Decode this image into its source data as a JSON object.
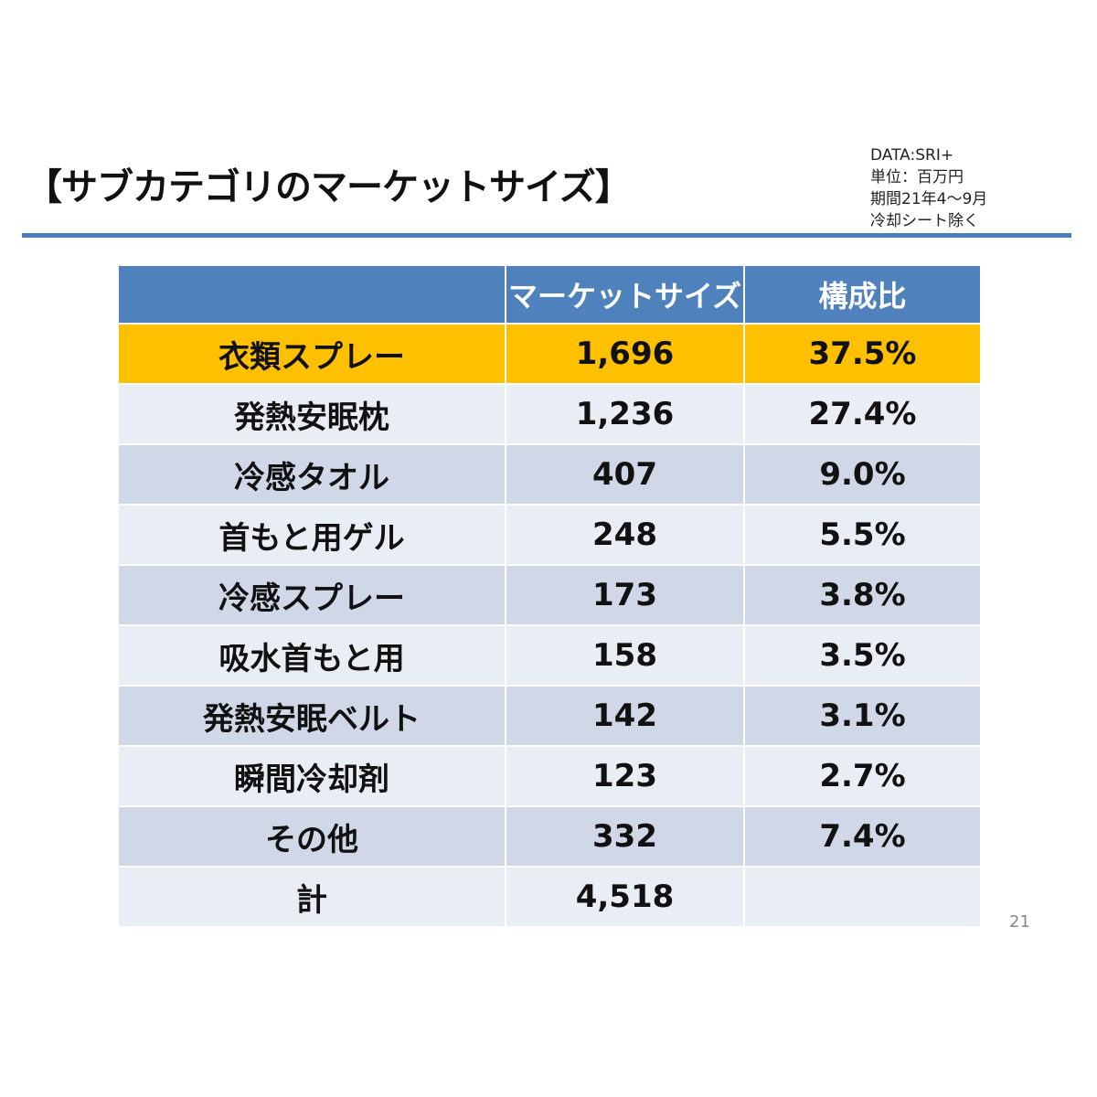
{
  "title": "【サブカテゴリのマーケットサイズ】",
  "notes": [
    "DATA:SRI+",
    "単位：百万円",
    "期間21年4～9月",
    "冷却シート除く"
  ],
  "colors": {
    "header": "#4f81bd",
    "highlight": "#ffc000",
    "row_light": "#e9edf4",
    "row_dark": "#d0d8e8",
    "rule": "#4a7ebb"
  },
  "table": {
    "headers": [
      "",
      "マーケットサイズ",
      "構成比"
    ],
    "rows": [
      {
        "name": "衣類スプレー",
        "size": "1,696",
        "share": "37.5%"
      },
      {
        "name": "発熱安眠枕",
        "size": "1,236",
        "share": "27.4%"
      },
      {
        "name": "冷感タオル",
        "size": "407",
        "share": "9.0%"
      },
      {
        "name": "首もと用ゲル",
        "size": "248",
        "share": "5.5%"
      },
      {
        "name": "冷感スプレー",
        "size": "173",
        "share": "3.8%"
      },
      {
        "name": "吸水首もと用",
        "size": "158",
        "share": "3.5%"
      },
      {
        "name": "発熱安眠ベルト",
        "size": "142",
        "share": "3.1%"
      },
      {
        "name": "瞬間冷却剤",
        "size": "123",
        "share": "2.7%"
      },
      {
        "name": "その他",
        "size": "332",
        "share": "7.4%"
      },
      {
        "name": "計",
        "size": "4,518",
        "share": ""
      }
    ]
  },
  "page_number": "21"
}
